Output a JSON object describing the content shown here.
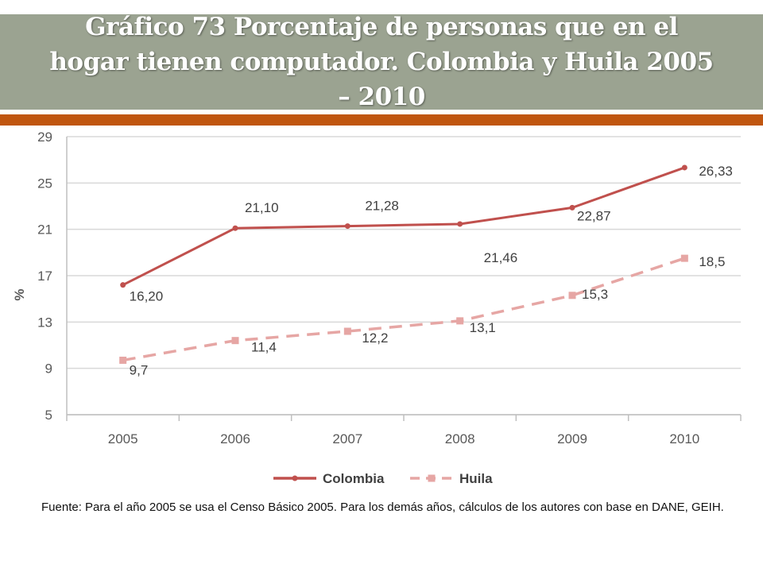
{
  "title": "Gráfico 73 Porcentaje de personas que en el hogar tienen computador. Colombia y Huila 2005 – 2010",
  "source_note": "Fuente: Para el año 2005 se usa el Censo Básico 2005. Para los demás años, cálculos de los autores con base en DANE, GEIH.",
  "colors": {
    "banner": "#9ba391",
    "accent_bar": "#c0560f",
    "colombia": "#c0504d",
    "huila": "#e6a6a4"
  },
  "chart_data": {
    "type": "line",
    "categories": [
      "2005",
      "2006",
      "2007",
      "2008",
      "2009",
      "2010"
    ],
    "ylabel": "%",
    "ylim": [
      5,
      29
    ],
    "yticks": [
      "29",
      "25",
      "21",
      "17",
      "13",
      "9",
      "5"
    ],
    "grid": true,
    "legend": "bottom",
    "series": [
      {
        "name": "Colombia",
        "values": [
          16.2,
          21.1,
          21.28,
          21.46,
          22.87,
          26.33
        ],
        "labels": [
          "16,20",
          "21,10",
          "21,28",
          "21,46",
          "22,87",
          "26,33"
        ],
        "style": "solid"
      },
      {
        "name": "Huila",
        "values": [
          9.7,
          11.4,
          12.2,
          13.1,
          15.3,
          18.5
        ],
        "labels": [
          "9,7",
          "11,4",
          "12,2",
          "13,1",
          "15,3",
          "18,5"
        ],
        "style": "dashed"
      }
    ]
  }
}
